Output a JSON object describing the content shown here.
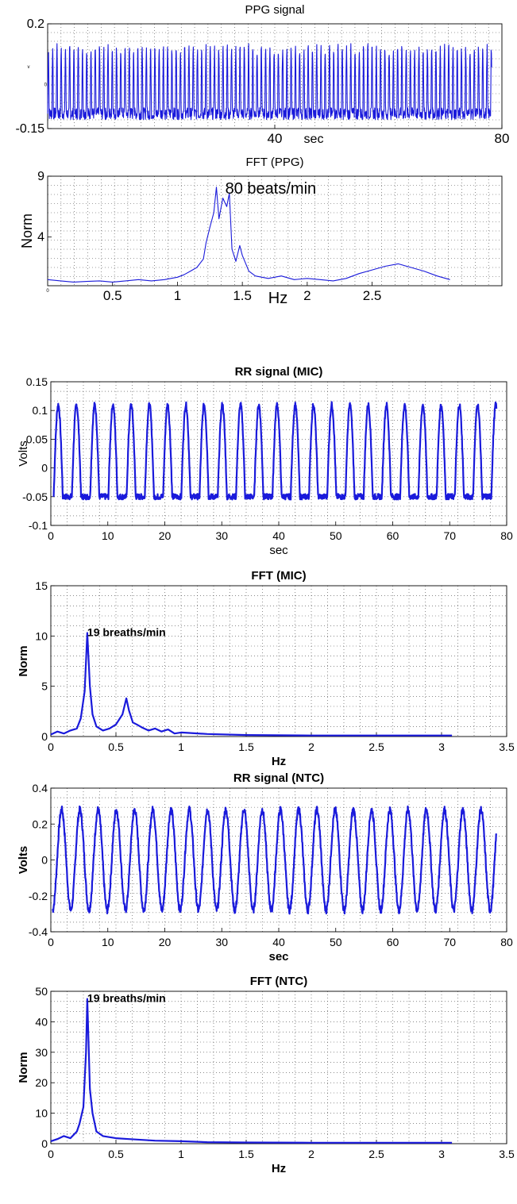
{
  "chart_data": [
    {
      "id": "ppg",
      "type": "line",
      "title": "PPG signal",
      "xlabel": "sec",
      "ylabel": "",
      "y_unit_mark": "v",
      "xlim": [
        0,
        80
      ],
      "ylim": [
        -0.15,
        0.2
      ],
      "x_ticks": [
        40,
        80
      ],
      "y_ticks": [
        -0.15,
        0.2
      ],
      "y_zero_tick": "0",
      "grid": true,
      "style": "plain",
      "series": [
        {
          "signal": {
            "kind": "periodic",
            "period": 0.75,
            "peak": 0.12,
            "trough": -0.1,
            "width": 0.35,
            "noise": 0.02
          }
        }
      ]
    },
    {
      "id": "fft_ppg",
      "type": "line",
      "title": "FFT (PPG)",
      "xlabel": "Hz",
      "ylabel": "Norm",
      "xlim": [
        0,
        3.5
      ],
      "ylim": [
        0,
        9
      ],
      "x_ticks": [
        0.5,
        1,
        1.5,
        2,
        2.5
      ],
      "y_ticks": [
        4,
        9
      ],
      "x_zero_tick": "0",
      "grid": true,
      "style": "plain",
      "annotation": {
        "text": "80 beats/min",
        "x": 1.35,
        "y": 8.1
      },
      "series": [
        {
          "x": [
            0,
            0.1,
            0.2,
            0.3,
            0.4,
            0.5,
            0.6,
            0.7,
            0.8,
            0.9,
            1.0,
            1.05,
            1.1,
            1.15,
            1.2,
            1.22,
            1.25,
            1.28,
            1.3,
            1.32,
            1.35,
            1.38,
            1.4,
            1.42,
            1.45,
            1.48,
            1.5,
            1.55,
            1.6,
            1.7,
            1.8,
            1.9,
            2.0,
            2.1,
            2.2,
            2.3,
            2.4,
            2.5,
            2.6,
            2.7,
            2.8,
            2.9,
            3.0,
            3.1
          ],
          "y": [
            0.5,
            0.4,
            0.3,
            0.35,
            0.4,
            0.3,
            0.4,
            0.5,
            0.4,
            0.5,
            0.7,
            0.9,
            1.2,
            1.5,
            2.2,
            3.5,
            4.8,
            6.0,
            8.1,
            5.5,
            7.2,
            6.5,
            7.6,
            3.0,
            2.0,
            3.3,
            2.5,
            1.2,
            0.8,
            0.6,
            0.8,
            0.5,
            0.6,
            0.5,
            0.4,
            0.6,
            1.0,
            1.3,
            1.6,
            1.8,
            1.5,
            1.2,
            0.8,
            0.5
          ]
        }
      ]
    },
    {
      "id": "rr_mic",
      "type": "line",
      "title": "RR signal (MIC)",
      "xlabel": "sec",
      "ylabel": "Volts",
      "xlim": [
        0,
        80
      ],
      "ylim": [
        -0.1,
        0.15
      ],
      "x_ticks": [
        0,
        10,
        20,
        30,
        40,
        50,
        60,
        70,
        80
      ],
      "y_ticks": [
        -0.1,
        -0.05,
        0,
        0.05,
        0.1,
        0.15
      ],
      "grid": true,
      "style": "bold",
      "series": [
        {
          "signal": {
            "kind": "periodic",
            "period": 3.2,
            "peak": 0.11,
            "trough": -0.05,
            "width": 0.5,
            "noise": 0.005,
            "start": 0.5
          }
        }
      ]
    },
    {
      "id": "fft_mic",
      "type": "line",
      "title": "FFT (MIC)",
      "xlabel": "Hz",
      "ylabel": "Norm",
      "xlim": [
        0,
        3.5
      ],
      "ylim": [
        0,
        15
      ],
      "x_ticks": [
        0,
        0.5,
        1,
        1.5,
        2,
        2.5,
        3,
        3.5
      ],
      "y_ticks": [
        0,
        5,
        10,
        15
      ],
      "grid": true,
      "style": "bold",
      "annotation": {
        "text": "19 breaths/min",
        "x": 0.28,
        "y": 10.3
      },
      "series": [
        {
          "x": [
            0,
            0.05,
            0.1,
            0.15,
            0.2,
            0.23,
            0.26,
            0.28,
            0.3,
            0.32,
            0.35,
            0.4,
            0.45,
            0.5,
            0.55,
            0.58,
            0.6,
            0.63,
            0.66,
            0.7,
            0.75,
            0.8,
            0.85,
            0.9,
            0.95,
            1.0,
            1.2,
            1.5,
            2.0,
            2.5,
            3.0,
            3.08
          ],
          "y": [
            0.2,
            0.5,
            0.3,
            0.6,
            0.8,
            1.8,
            4.5,
            10.3,
            5.0,
            2.2,
            1.0,
            0.6,
            0.8,
            1.2,
            2.2,
            3.8,
            2.6,
            1.4,
            1.2,
            0.9,
            0.6,
            0.8,
            0.5,
            0.7,
            0.3,
            0.4,
            0.25,
            0.15,
            0.1,
            0.1,
            0.1,
            0.1
          ]
        }
      ]
    },
    {
      "id": "rr_ntc",
      "type": "line",
      "title": "RR signal (NTC)",
      "xlabel": "sec",
      "ylabel": "Volts",
      "xlim": [
        0,
        80
      ],
      "ylim": [
        -0.4,
        0.4
      ],
      "x_ticks": [
        0,
        10,
        20,
        30,
        40,
        50,
        60,
        70,
        80
      ],
      "y_ticks": [
        -0.4,
        -0.2,
        0,
        0.2,
        0.4
      ],
      "grid": true,
      "style": "bold",
      "series": [
        {
          "signal": {
            "kind": "sine",
            "period": 3.2,
            "amplitude": 0.28,
            "noise": 0.02,
            "start": 0.3
          }
        }
      ]
    },
    {
      "id": "fft_ntc",
      "type": "line",
      "title": "FFT (NTC)",
      "xlabel": "Hz",
      "ylabel": "Norm",
      "xlim": [
        0,
        3.5
      ],
      "ylim": [
        0,
        50
      ],
      "x_ticks": [
        0,
        0.5,
        1,
        1.5,
        2,
        2.5,
        3,
        3.5
      ],
      "y_ticks": [
        0,
        10,
        20,
        30,
        40,
        50
      ],
      "grid": true,
      "style": "bold",
      "annotation": {
        "text": "19 breaths/min",
        "x": 0.28,
        "y": 47.5
      },
      "series": [
        {
          "x": [
            0,
            0.05,
            0.1,
            0.15,
            0.2,
            0.22,
            0.25,
            0.27,
            0.28,
            0.3,
            0.32,
            0.35,
            0.4,
            0.5,
            0.6,
            0.8,
            1.0,
            1.2,
            1.5,
            2.0,
            2.5,
            3.0,
            3.08
          ],
          "y": [
            0.8,
            1.5,
            2.5,
            1.8,
            4.0,
            6.5,
            12.0,
            30.0,
            47.5,
            18.0,
            10.0,
            4.0,
            2.5,
            1.8,
            1.5,
            1.0,
            0.8,
            0.5,
            0.4,
            0.3,
            0.3,
            0.3,
            0.3
          ]
        }
      ]
    }
  ]
}
